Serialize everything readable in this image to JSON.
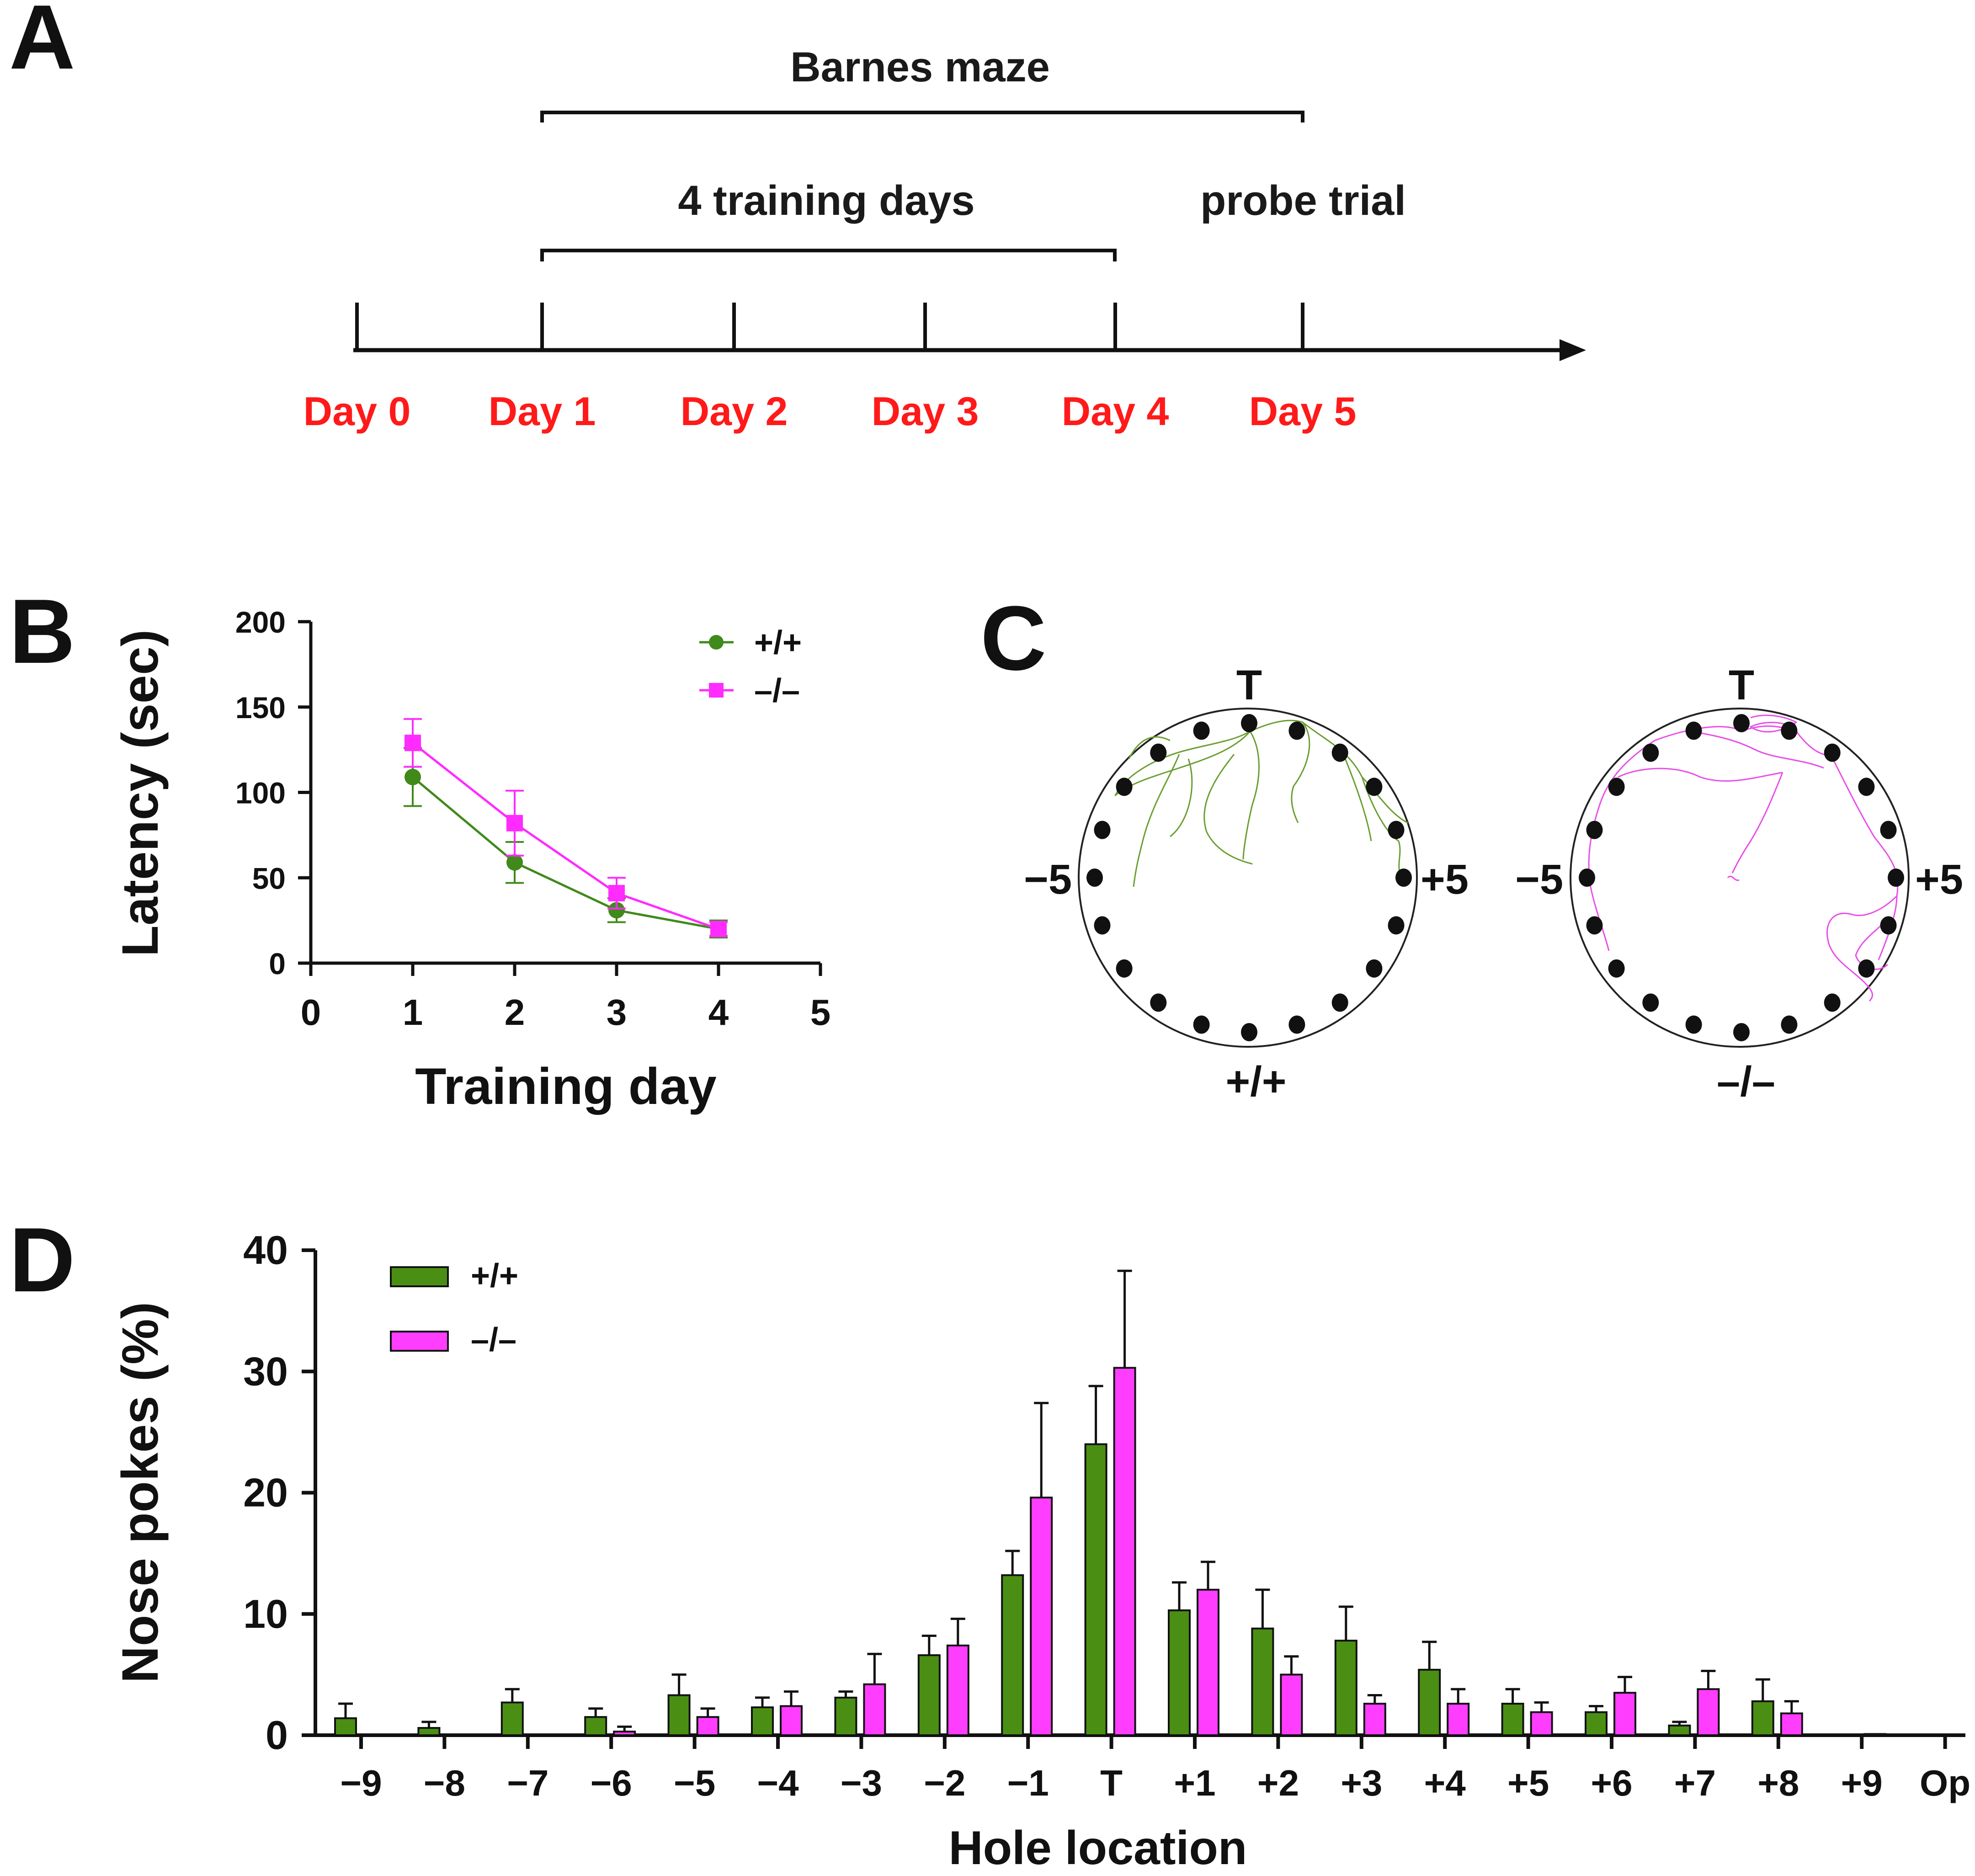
{
  "panels": {
    "a": {
      "letter": "A",
      "barnes_label": "Barnes maze",
      "training_label": "4 training days",
      "probe_label": "probe trial",
      "days": [
        "Day 0",
        "Day 1",
        "Day 2",
        "Day 3",
        "Day 4",
        "Day 5"
      ],
      "day_color": "#ff1a1a"
    },
    "b": {
      "letter": "B"
    },
    "c": {
      "letter": "C",
      "top_label": "T",
      "left_label": "−5",
      "right_label": "+5",
      "arenas": [
        {
          "genotype": "+/+",
          "path_color": "#6a9e2f"
        },
        {
          "genotype": "–/–",
          "path_color": "#e84fe8"
        }
      ]
    },
    "d": {
      "letter": "D"
    }
  },
  "colors": {
    "wt": "#3f8a1a",
    "ko": "#ff2bff",
    "wt_bar": "#4a8f14",
    "ko_bar": "#ff3dff"
  },
  "chart_data": [
    {
      "id": "latency",
      "type": "line",
      "xlabel": "Training day",
      "ylabel": "Latency (sec)",
      "xlim": [
        0,
        5
      ],
      "ylim": [
        0,
        200
      ],
      "x_ticks": [
        0,
        1,
        2,
        3,
        4,
        5
      ],
      "y_ticks": [
        0,
        50,
        100,
        150,
        200
      ],
      "x": [
        1,
        2,
        3,
        4
      ],
      "legend_position": "top-right",
      "series": [
        {
          "name": "+/+",
          "marker": "circle",
          "values": [
            109,
            59,
            31,
            20
          ],
          "errors": [
            17,
            12,
            7,
            5
          ]
        },
        {
          "name": "–/–",
          "marker": "square",
          "values": [
            129,
            82,
            41,
            20
          ],
          "errors": [
            14,
            19,
            9,
            4
          ]
        }
      ]
    },
    {
      "id": "nose_pokes",
      "type": "bar",
      "xlabel": "Hole location",
      "ylabel": "Nose pokes (%)",
      "ylim": [
        0,
        40
      ],
      "y_ticks": [
        0,
        10,
        20,
        30,
        40
      ],
      "categories": [
        "−9",
        "−8",
        "−7",
        "−6",
        "−5",
        "−4",
        "−3",
        "−2",
        "−1",
        "T",
        "+1",
        "+2",
        "+3",
        "+4",
        "+5",
        "+6",
        "+7",
        "+8",
        "+9",
        "Op"
      ],
      "legend_position": "top-left",
      "series": [
        {
          "name": "+/+",
          "values": [
            1.4,
            0.6,
            2.7,
            1.5,
            3.3,
            2.3,
            3.1,
            6.6,
            13.2,
            24.0,
            10.3,
            8.8,
            7.8,
            5.4,
            2.6,
            1.9,
            0.8,
            2.8,
            0,
            0
          ],
          "errors": [
            1.2,
            0.5,
            1.1,
            0.7,
            1.7,
            0.8,
            0.5,
            1.6,
            2.0,
            4.8,
            2.3,
            3.2,
            2.8,
            2.3,
            1.2,
            0.5,
            0.3,
            1.8,
            0,
            0
          ]
        },
        {
          "name": "–/–",
          "values": [
            0,
            0,
            0,
            0.3,
            1.5,
            2.4,
            4.2,
            7.4,
            19.6,
            30.3,
            12.0,
            5.0,
            2.6,
            2.6,
            1.9,
            3.5,
            3.8,
            1.8,
            0.1,
            0
          ],
          "errors": [
            0,
            0,
            0,
            0.4,
            0.7,
            1.2,
            2.5,
            2.2,
            7.8,
            8.0,
            2.3,
            1.5,
            0.7,
            1.2,
            0.8,
            1.3,
            1.5,
            1.0,
            0,
            0
          ]
        }
      ]
    }
  ]
}
